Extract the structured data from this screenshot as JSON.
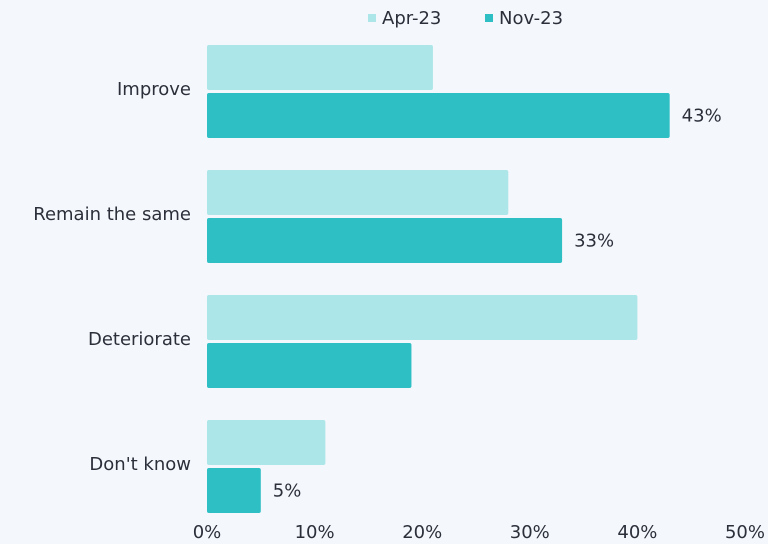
{
  "chart_data": {
    "type": "bar",
    "orientation": "horizontal",
    "categories": [
      "Improve",
      "Remain the same",
      "Deteriorate",
      "Don't know"
    ],
    "series": [
      {
        "name": "Apr-23",
        "color": "#ade6e8",
        "values": [
          21,
          28,
          40,
          11
        ]
      },
      {
        "name": "Nov-23",
        "color": "#2ebfc4",
        "values": [
          43,
          33,
          19,
          5
        ],
        "value_labels": [
          "43%",
          "33%",
          null,
          "5%"
        ]
      }
    ],
    "xlim": [
      0,
      50
    ],
    "xticks": [
      {
        "value": 0,
        "label": "0%"
      },
      {
        "value": 10,
        "label": "10%"
      },
      {
        "value": 20,
        "label": "20%"
      },
      {
        "value": 30,
        "label": "30%"
      },
      {
        "value": 40,
        "label": "40%"
      },
      {
        "value": 50,
        "label": "50%"
      }
    ],
    "legend": "top"
  }
}
